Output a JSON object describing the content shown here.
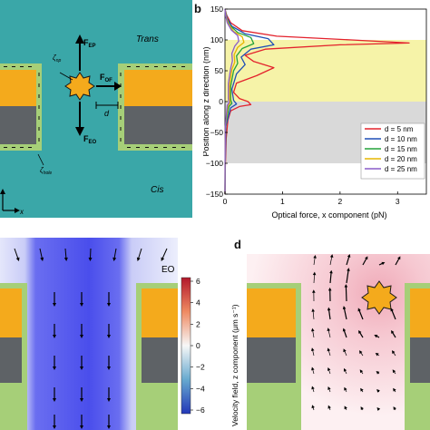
{
  "panel_a": {
    "labels": {
      "trans": "Trans",
      "cis": "Cis",
      "f_ep": "F",
      "f_ep_sub": "EP",
      "f_of": "F",
      "f_of_sub": "OF",
      "f_eo": "F",
      "f_eo_sub": "EO",
      "zeta_np": "ζ",
      "zeta_np_sub": "np",
      "zeta_hole": "ζ",
      "zeta_hole_sub": "hole",
      "d": "d",
      "x_axis": "x"
    },
    "colors": {
      "water": "#3aa7a8",
      "gold": "#f4aa1c",
      "gray": "#5e6266",
      "membrane_green": "#a6cf78"
    }
  },
  "panel_b": {
    "letter": "b",
    "colors": {
      "trans_band": "#f6f3a8",
      "cis_band": "#d9d9d9"
    }
  },
  "chart_data": {
    "type": "line",
    "xlabel": "Optical force, x component (pN)",
    "ylabel": "Position along z direction (nm)",
    "xlim": [
      0,
      3.5
    ],
    "ylim": [
      -150,
      150
    ],
    "xticks": [
      0,
      1,
      2,
      3
    ],
    "yticks": [
      -150,
      -100,
      -50,
      0,
      50,
      100,
      150
    ],
    "legend_position": "right",
    "bands": [
      {
        "from": 0,
        "to": 100,
        "color": "#f6f3a8"
      },
      {
        "from": -100,
        "to": 0,
        "color": "#d9d9d9"
      }
    ],
    "series": [
      {
        "name": "d = 5 nm",
        "color": "#e3222c",
        "points": [
          [
            0,
            -150
          ],
          [
            0.005,
            -110
          ],
          [
            0.02,
            -60
          ],
          [
            0.05,
            -30
          ],
          [
            0.1,
            -15
          ],
          [
            0.25,
            -8
          ],
          [
            0.45,
            -5
          ],
          [
            0.4,
            0
          ],
          [
            0.25,
            5
          ],
          [
            0.15,
            15
          ],
          [
            0.2,
            30
          ],
          [
            0.55,
            42
          ],
          [
            0.85,
            55
          ],
          [
            0.5,
            65
          ],
          [
            0.35,
            75
          ],
          [
            0.7,
            85
          ],
          [
            2.0,
            92
          ],
          [
            3.2,
            95
          ],
          [
            2.2,
            100
          ],
          [
            0.9,
            106
          ],
          [
            0.3,
            115
          ],
          [
            0.1,
            128
          ],
          [
            0.03,
            140
          ],
          [
            0,
            150
          ]
        ]
      },
      {
        "name": "d = 10 nm",
        "color": "#1f4fb5",
        "points": [
          [
            0,
            -150
          ],
          [
            0.004,
            -100
          ],
          [
            0.015,
            -40
          ],
          [
            0.1,
            -10
          ],
          [
            0.2,
            -4
          ],
          [
            0.15,
            2
          ],
          [
            0.12,
            20
          ],
          [
            0.2,
            45
          ],
          [
            0.35,
            60
          ],
          [
            0.28,
            72
          ],
          [
            0.45,
            85
          ],
          [
            0.85,
            92
          ],
          [
            0.75,
            102
          ],
          [
            0.35,
            110
          ],
          [
            0.12,
            122
          ],
          [
            0.04,
            135
          ],
          [
            0,
            150
          ]
        ]
      },
      {
        "name": "d = 15 nm",
        "color": "#23a23a",
        "points": [
          [
            0,
            -150
          ],
          [
            0.003,
            -100
          ],
          [
            0.01,
            -40
          ],
          [
            0.07,
            -8
          ],
          [
            0.12,
            -3
          ],
          [
            0.1,
            3
          ],
          [
            0.1,
            25
          ],
          [
            0.15,
            50
          ],
          [
            0.22,
            62
          ],
          [
            0.2,
            74
          ],
          [
            0.3,
            86
          ],
          [
            0.5,
            94
          ],
          [
            0.45,
            104
          ],
          [
            0.22,
            112
          ],
          [
            0.08,
            124
          ],
          [
            0.02,
            136
          ],
          [
            0,
            150
          ]
        ]
      },
      {
        "name": "d = 20 nm",
        "color": "#e5b600",
        "points": [
          [
            0,
            -150
          ],
          [
            0.002,
            -100
          ],
          [
            0.008,
            -40
          ],
          [
            0.05,
            -7
          ],
          [
            0.09,
            -2
          ],
          [
            0.08,
            4
          ],
          [
            0.08,
            28
          ],
          [
            0.12,
            52
          ],
          [
            0.17,
            64
          ],
          [
            0.16,
            76
          ],
          [
            0.22,
            88
          ],
          [
            0.33,
            96
          ],
          [
            0.3,
            105
          ],
          [
            0.15,
            114
          ],
          [
            0.06,
            126
          ],
          [
            0.02,
            138
          ],
          [
            0,
            150
          ]
        ]
      },
      {
        "name": "d = 25 nm",
        "color": "#8a5cc9",
        "points": [
          [
            0,
            -150
          ],
          [
            0.002,
            -100
          ],
          [
            0.006,
            -40
          ],
          [
            0.04,
            -6
          ],
          [
            0.07,
            -2
          ],
          [
            0.06,
            5
          ],
          [
            0.06,
            30
          ],
          [
            0.1,
            54
          ],
          [
            0.13,
            66
          ],
          [
            0.12,
            78
          ],
          [
            0.17,
            90
          ],
          [
            0.24,
            98
          ],
          [
            0.22,
            107
          ],
          [
            0.11,
            116
          ],
          [
            0.04,
            128
          ],
          [
            0.01,
            140
          ],
          [
            0,
            150
          ]
        ]
      }
    ]
  },
  "panel_c": {
    "label": "EO",
    "colorbar_ticks": [
      "6",
      "4",
      "2",
      "0",
      "−2",
      "−4",
      "−6"
    ],
    "colors": {
      "low": "#3a3ee8",
      "high": "#e8323e"
    }
  },
  "panel_d": {
    "letter": "d",
    "colorbar_label": "Velocity field, z component (μm s⁻¹)",
    "colors": {
      "pink": "#f4c2cc",
      "gold": "#f4aa1c",
      "gray": "#5e6266",
      "membrane_green": "#a6cf78"
    }
  }
}
